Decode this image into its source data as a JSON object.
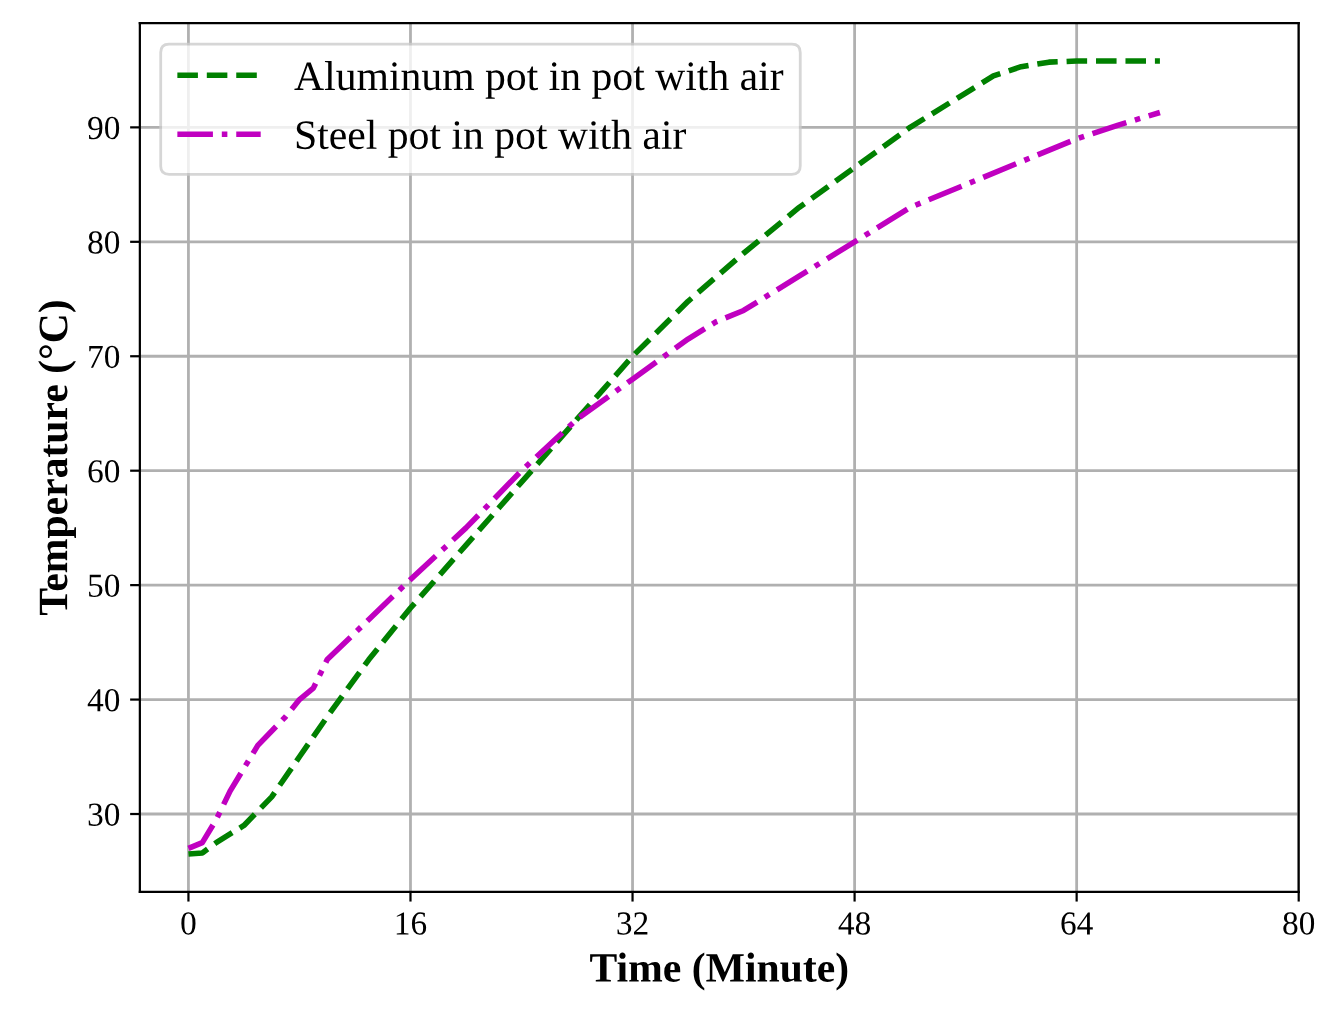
{
  "chart_data": {
    "type": "line",
    "xlabel": "Time (Minute)",
    "ylabel": "Temperature (°C)",
    "xlim": [
      -3.5,
      80
    ],
    "ylim": [
      23.2,
      99.1
    ],
    "xticks": [
      0,
      16,
      32,
      48,
      64,
      80
    ],
    "yticks": [
      30,
      40,
      50,
      60,
      70,
      80,
      90
    ],
    "grid": true,
    "legend": "top left",
    "series": [
      {
        "name": "Aluminum pot in pot with air",
        "color": "#008000",
        "line_style": "dashed",
        "x": [
          0,
          1,
          2,
          4,
          6,
          8,
          10,
          13,
          16,
          20,
          24,
          28,
          32,
          36,
          40,
          44,
          48,
          52,
          56,
          58,
          60,
          62,
          64,
          67,
          70
        ],
        "values": [
          26.5,
          26.6,
          27.5,
          29,
          31.5,
          35,
          38.5,
          43.5,
          48,
          53.5,
          59,
          64.5,
          70,
          74.8,
          79,
          83,
          86.5,
          90,
          93,
          94.5,
          95.3,
          95.7,
          95.8,
          95.8,
          95.8
        ]
      },
      {
        "name": "Steel pot in pot with air",
        "color": "#c000c0",
        "line_style": "dashdot",
        "x": [
          0,
          1,
          2,
          3,
          5,
          7,
          8,
          9,
          10,
          13,
          16,
          20,
          24,
          28,
          32,
          36,
          38,
          40,
          44,
          48,
          52,
          56,
          60,
          64,
          67,
          70
        ],
        "values": [
          27,
          27.5,
          29.5,
          32,
          36,
          38.5,
          40,
          41,
          43.5,
          47,
          50.5,
          55,
          60,
          64.5,
          68,
          71.5,
          73,
          74,
          77,
          80,
          83,
          85,
          87,
          89,
          90.2,
          91.3
        ]
      }
    ]
  }
}
